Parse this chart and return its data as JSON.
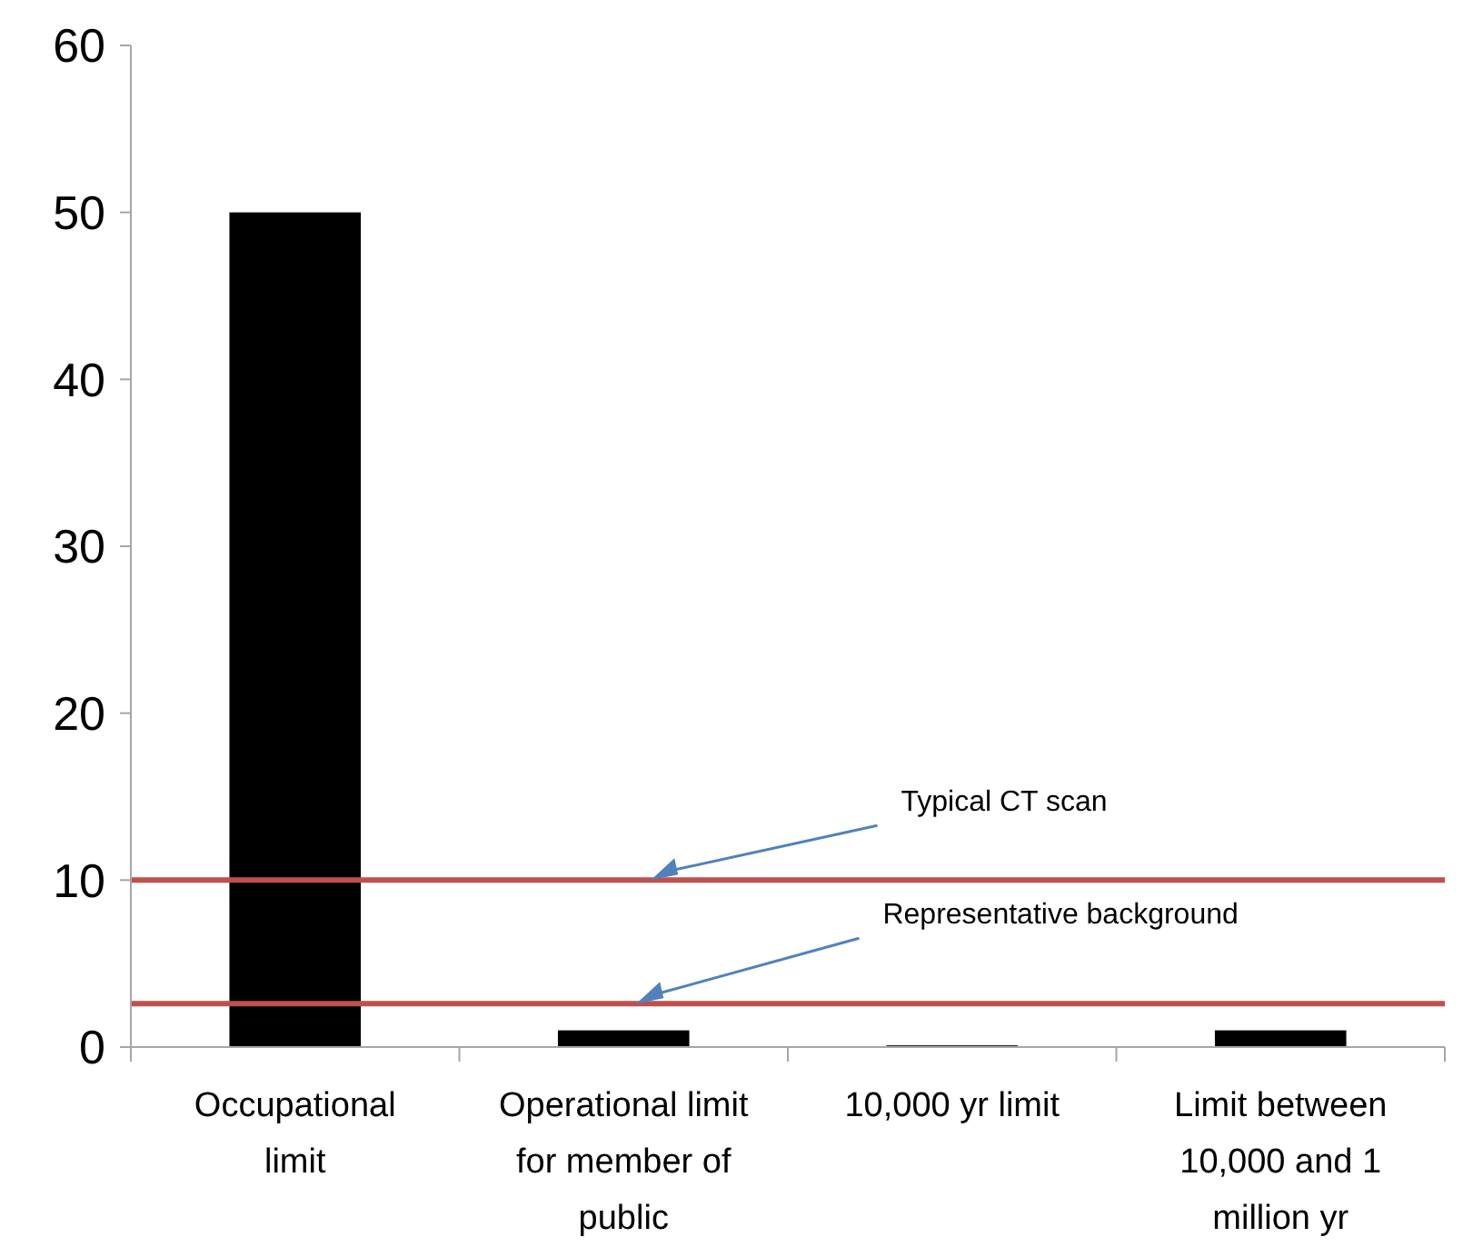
{
  "chart_data": {
    "type": "bar",
    "categories": [
      "Occupational limit",
      "Operational limit for member of public",
      "10,000 yr limit",
      "Limit between 10,000 and 1 million yr"
    ],
    "values": [
      50,
      1,
      0.1,
      1
    ],
    "color": "#000000",
    "ylim": [
      0,
      60
    ],
    "yticks": [
      0,
      10,
      20,
      30,
      40,
      50,
      60
    ],
    "grid": false,
    "ref_lines": [
      {
        "axis": "y",
        "value": 10,
        "label": "Typical CT scan",
        "color": "#c0504d"
      },
      {
        "axis": "y",
        "value": 2.6,
        "label": "Representative background",
        "color": "#c0504d"
      }
    ]
  }
}
